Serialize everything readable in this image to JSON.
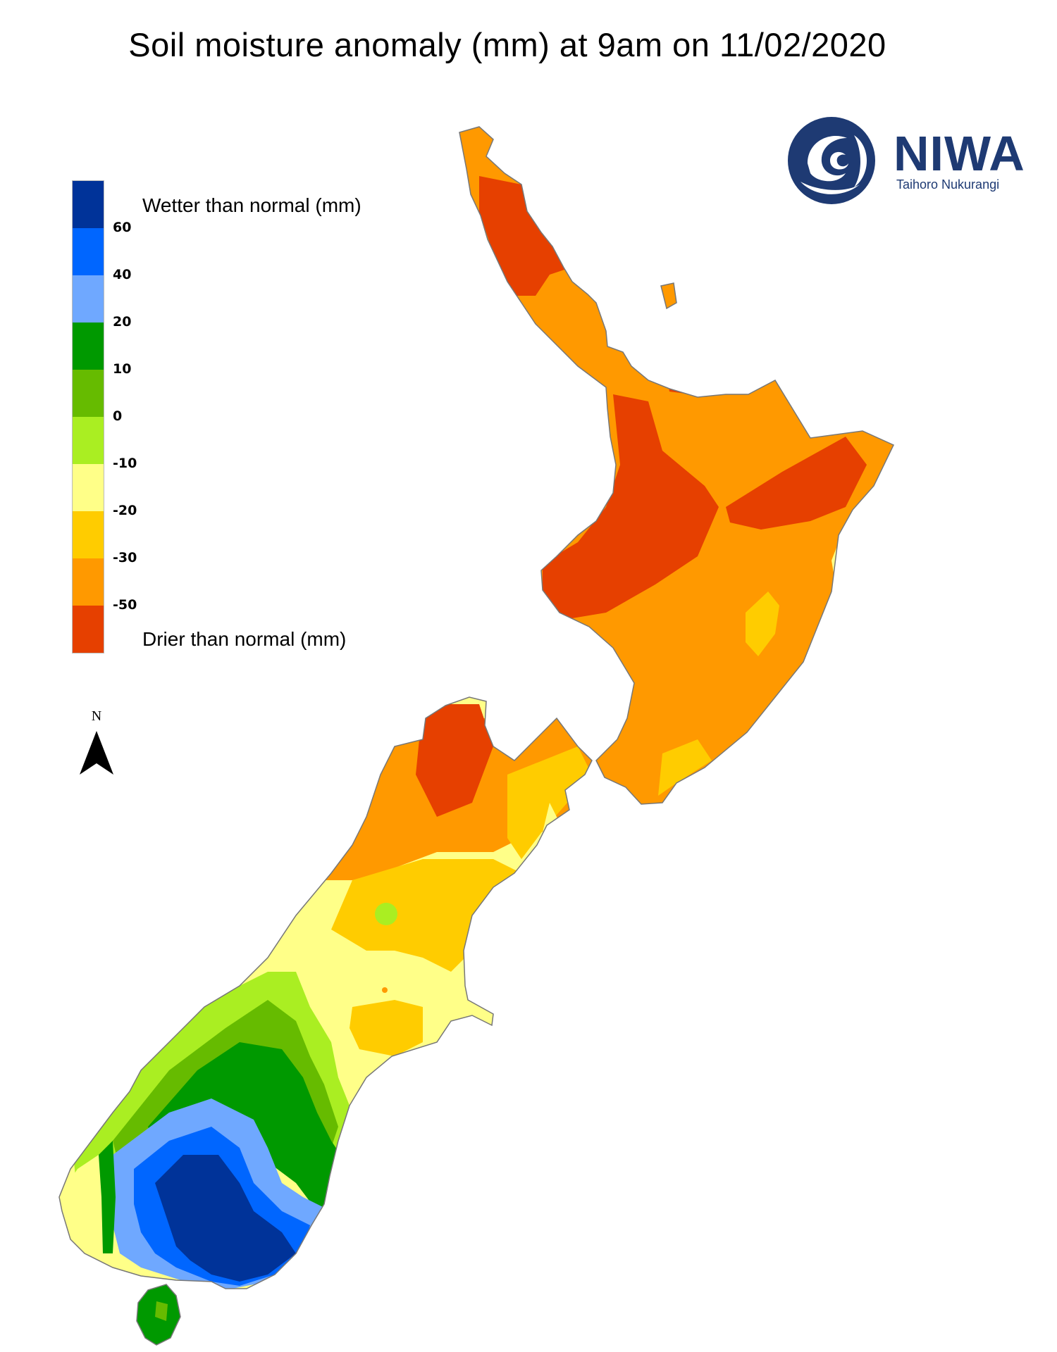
{
  "title": "Soil moisture anomaly (mm) at 9am on 11/02/2020",
  "legend": {
    "wetter_label": "Wetter than normal (mm)",
    "drier_label": "Drier than normal (mm)",
    "bins": [
      {
        "color": "#003399",
        "label": "60"
      },
      {
        "color": "#0066ff",
        "label": "40"
      },
      {
        "color": "#6fa8ff",
        "label": "20"
      },
      {
        "color": "#009900",
        "label": "10"
      },
      {
        "color": "#66bb00",
        "label": "0"
      },
      {
        "color": "#aaee22",
        "label": "-10"
      },
      {
        "color": "#ffff88",
        "label": "-20"
      },
      {
        "color": "#ffcc00",
        "label": "-30"
      },
      {
        "color": "#ff9900",
        "label": "-50"
      },
      {
        "color": "#e64000",
        "label": ""
      }
    ]
  },
  "north_label": "N",
  "logo": {
    "name": "NIWA",
    "subtitle": "Taihoro Nukurangi",
    "color": "#1e3a73"
  },
  "map_colors": {
    "very_dry": "#e64000",
    "dry": "#ff9900",
    "moderately_dry": "#ffcc00",
    "slightly_dry": "#ffff88",
    "near_normal_dry": "#aaee22",
    "near_normal_wet": "#66bb00",
    "wet": "#009900",
    "wetter": "#6fa8ff",
    "very_wet": "#0066ff",
    "extremely_wet": "#003399",
    "coast": "#777777"
  }
}
